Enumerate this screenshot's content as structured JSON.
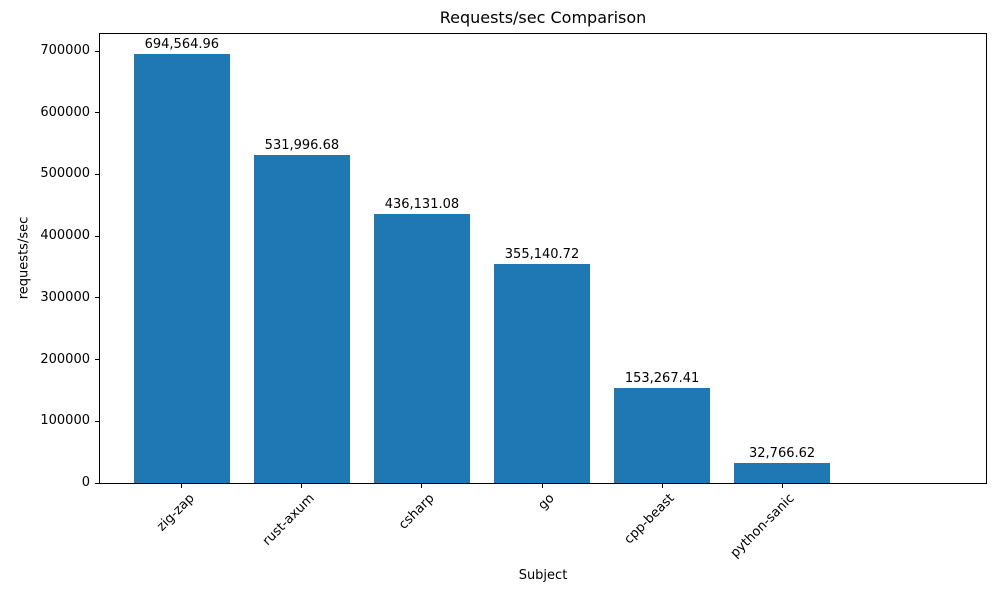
{
  "chart_data": {
    "type": "bar",
    "title": "Requests/sec Comparison",
    "xlabel": "Subject",
    "ylabel": "requests/sec",
    "categories": [
      "zig-zap",
      "rust-axum",
      "csharp",
      "go",
      "cpp-beast",
      "python-sanic"
    ],
    "values": [
      694564.96,
      531996.68,
      436131.08,
      355140.72,
      153267.41,
      32766.62
    ],
    "value_labels": [
      "694,564.96",
      "531,996.68",
      "436,131.08",
      "355,140.72",
      "153,267.41",
      "32,766.62"
    ],
    "yticks": [
      0,
      100000,
      200000,
      300000,
      400000,
      500000,
      600000,
      700000
    ],
    "ylim": [
      0,
      729293
    ],
    "x_tick_rotation_deg": 45,
    "grid": false,
    "legend": null,
    "colors": {
      "bar": "#1f77b4",
      "axis": "#000000",
      "text": "#000000",
      "background": "#ffffff"
    }
  }
}
